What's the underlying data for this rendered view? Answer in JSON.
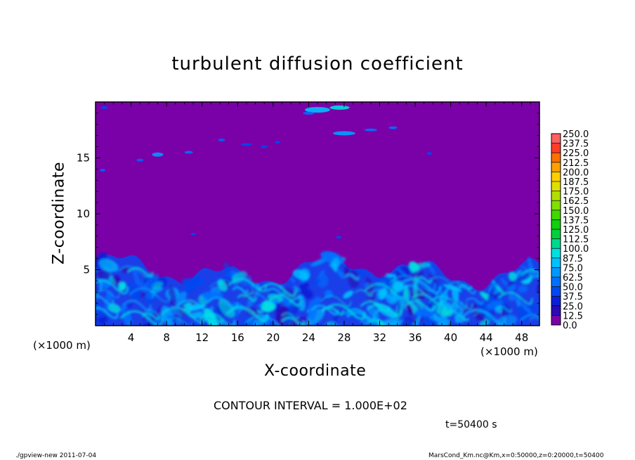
{
  "chart_data": {
    "type": "heatmap",
    "title": "turbulent diffusion coefficient",
    "xlabel": "X-coordinate",
    "ylabel": "Z-coordinate",
    "x_unit": "(×1000 m)",
    "y_unit": "(×1000 m)",
    "xlim": [
      0,
      50
    ],
    "ylim": [
      0,
      20
    ],
    "x_ticks": [
      4,
      8,
      12,
      16,
      20,
      24,
      28,
      32,
      36,
      40,
      44,
      48
    ],
    "y_ticks": [
      5,
      10,
      15
    ],
    "colorbar_levels": [
      "0.0",
      "12.5",
      "25.0",
      "37.5",
      "50.0",
      "62.5",
      "75.0",
      "87.5",
      "100.0",
      "112.5",
      "125.0",
      "137.5",
      "150.0",
      "162.5",
      "175.0",
      "187.5",
      "200.0",
      "212.5",
      "225.0",
      "237.5",
      "250.0"
    ],
    "colorbar_colors": [
      "#7a00a8",
      "#2a0ab8",
      "#0a20d8",
      "#0048f0",
      "#0070ff",
      "#0098ff",
      "#00c0ff",
      "#00e0e0",
      "#00d890",
      "#00d040",
      "#10d010",
      "#40d800",
      "#80e000",
      "#b0e000",
      "#e0e000",
      "#ffd000",
      "#ffa000",
      "#ff7000",
      "#ff3c28",
      "#ff6060",
      "#ff9090"
    ],
    "contour_interval": "CONTOUR INTERVAL = 1.000E+02",
    "time_label": "t=50400 s"
  },
  "footer": {
    "left": "./gpview-new   2011-07-04",
    "right": "MarsCond_Km.nc@Km,x=0:50000,z=0:20000,t=50400"
  }
}
